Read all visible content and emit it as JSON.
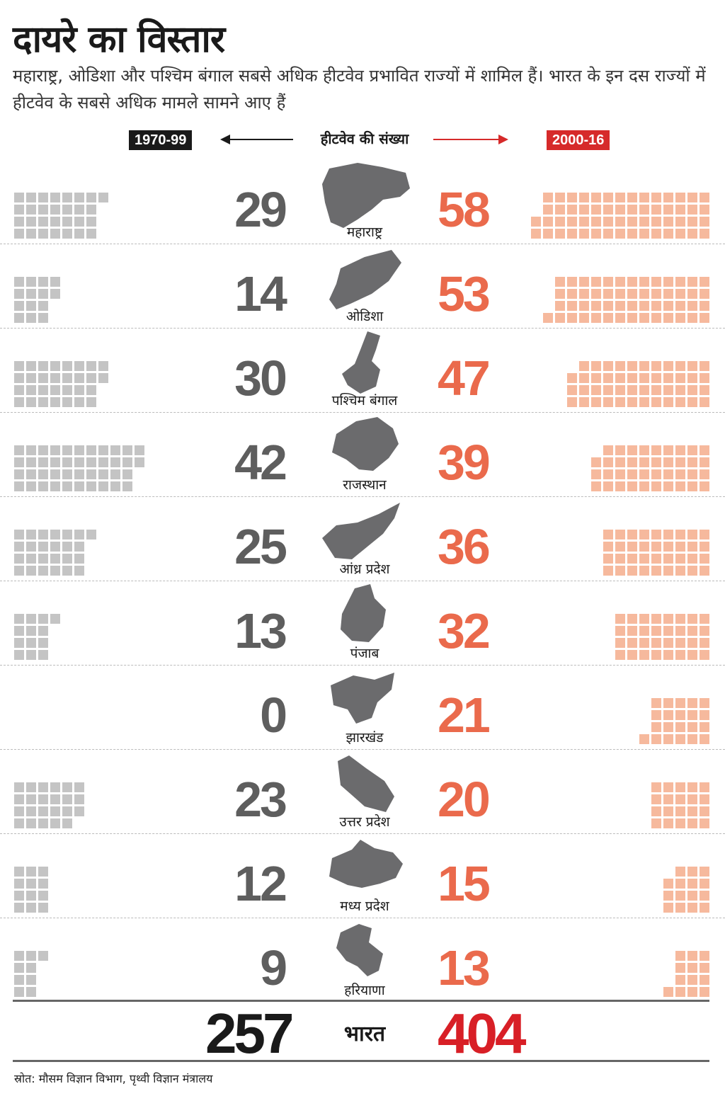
{
  "header": {
    "title": "दायरे का विस्तार",
    "subtitle": "महाराष्ट्र, ओडिशा और पश्चिम बंगाल सबसे अधिक हीटवेव प्रभावित राज्यों में शामिल हैं। भारत के इन दस राज्यों में हीटवेव के सबसे अधिक मामले सामने आए हैं",
    "axis_label": "हीटवेव की संख्या",
    "period_left": "1970-99",
    "period_right": "2000-16"
  },
  "colors": {
    "left_number": "#5e5e5e",
    "left_square": "#c4c4c4",
    "right_number": "#ea6a4c",
    "right_square": "#f6b99d",
    "right_badge": "#d62a2a",
    "total_right": "#d81f26",
    "map": "#6b6b6d"
  },
  "chart_data": {
    "type": "bar",
    "categories": [
      "महाराष्ट्र",
      "ओडिशा",
      "पश्चिम बंगाल",
      "राजस्थान",
      "आंध्र प्रदेश",
      "पंजाब",
      "झारखंड",
      "उत्तर प्रदेश",
      "मध्य प्रदेश",
      "हरियाणा"
    ],
    "series": [
      {
        "name": "1970-99",
        "values": [
          29,
          14,
          30,
          42,
          25,
          13,
          0,
          23,
          12,
          9
        ]
      },
      {
        "name": "2000-16",
        "values": [
          58,
          53,
          47,
          39,
          36,
          32,
          21,
          20,
          15,
          13
        ]
      }
    ],
    "totals": {
      "label": "भारत",
      "left": 257,
      "right": 404
    }
  },
  "source": "स्रोत: मौसम विज्ञान विभाग, पृथ्वी विज्ञान मंत्रालय"
}
